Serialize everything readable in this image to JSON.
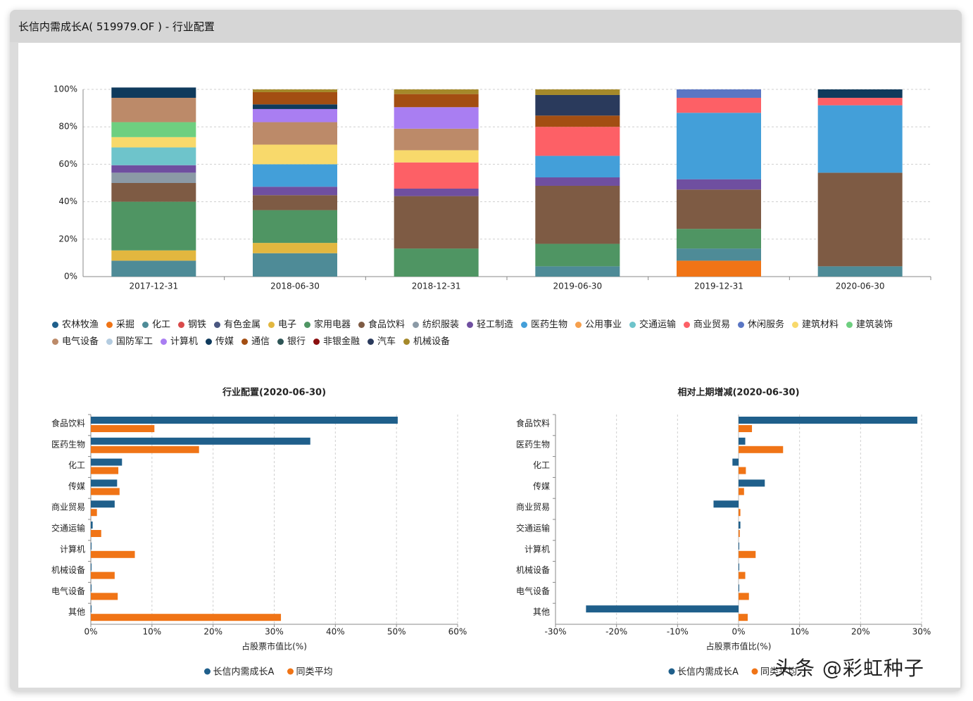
{
  "window": {
    "title": "长信内需成长A( 519979.OF ) - 行业配置"
  },
  "watermark": "头条 @彩虹种子",
  "colors": {
    "农林牧渔": "#1f5f8b",
    "采掘": "#f07416",
    "化工": "#4e8b97",
    "钢铁": "#d94a4a",
    "有色金属": "#4a5780",
    "电子": "#e2b73f",
    "家用电器": "#4f9563",
    "食品饮料": "#7e5b44",
    "纺织服装": "#8b9aa6",
    "轻工制造": "#6f4fa0",
    "医药生物": "#439fd9",
    "公用事业": "#f6a04d",
    "交通运输": "#6ec4cb",
    "商业贸易": "#fd6066",
    "休闲服务": "#5a76c4",
    "建筑材料": "#f8d96b",
    "建筑装饰": "#6ecf80",
    "电气设备": "#bc8a69",
    "国防军工": "#b4cce0",
    "计算机": "#a97ef2",
    "传媒": "#0f3a5c",
    "通信": "#a34e12",
    "银行": "#2e5556",
    "非银金融": "#8b0f0f",
    "汽车": "#2a3a5c",
    "机械设备": "#a5892a",
    "series_fund": "#1f5f8b",
    "series_avg": "#f07416"
  },
  "chart_data": [
    {
      "type": "bar",
      "stacked": true,
      "title": "",
      "categories": [
        "2017-12-31",
        "2018-06-30",
        "2018-12-31",
        "2019-06-30",
        "2019-12-31",
        "2020-06-30"
      ],
      "ylim": [
        0,
        100
      ],
      "yticks": [
        "0%",
        "20%",
        "40%",
        "60%",
        "80%",
        "100%"
      ],
      "grid": true,
      "legend_position": "bottom",
      "legend": [
        "农林牧渔",
        "采掘",
        "化工",
        "钢铁",
        "有色金属",
        "电子",
        "家用电器",
        "食品饮料",
        "纺织服装",
        "轻工制造",
        "医药生物",
        "公用事业",
        "交通运输",
        "商业贸易",
        "休闲服务",
        "建筑材料",
        "建筑装饰",
        "电气设备",
        "国防军工",
        "计算机",
        "传媒",
        "通信",
        "银行",
        "非银金融",
        "汽车",
        "机械设备"
      ],
      "stacks": [
        [
          [
            "化工",
            8.5
          ],
          [
            "电子",
            5.5
          ],
          [
            "家用电器",
            26
          ],
          [
            "食品饮料",
            10
          ],
          [
            "纺织服装",
            5.5
          ],
          [
            "轻工制造",
            4
          ],
          [
            "交通运输",
            9.5
          ],
          [
            "建筑材料",
            5.5
          ],
          [
            "建筑装饰",
            8
          ],
          [
            "电气设备",
            13
          ],
          [
            "传媒",
            5.5
          ]
        ],
        [
          [
            "化工",
            12.5
          ],
          [
            "电子",
            5.5
          ],
          [
            "家用电器",
            17.5
          ],
          [
            "食品饮料",
            8
          ],
          [
            "轻工制造",
            4.5
          ],
          [
            "医药生物",
            12
          ],
          [
            "建筑材料",
            10.5
          ],
          [
            "电气设备",
            12
          ],
          [
            "计算机",
            7
          ],
          [
            "传媒",
            2.5
          ],
          [
            "通信",
            6.5
          ],
          [
            "机械设备",
            1.5
          ]
        ],
        [
          [
            "家用电器",
            15
          ],
          [
            "食品饮料",
            28
          ],
          [
            "轻工制造",
            4
          ],
          [
            "商业贸易",
            14
          ],
          [
            "建筑材料",
            6.5
          ],
          [
            "电气设备",
            11.5
          ],
          [
            "计算机",
            11.5
          ],
          [
            "通信",
            7
          ],
          [
            "机械设备",
            2.5
          ]
        ],
        [
          [
            "化工",
            5.5
          ],
          [
            "家用电器",
            12
          ],
          [
            "食品饮料",
            31
          ],
          [
            "轻工制造",
            4.5
          ],
          [
            "医药生物",
            11.5
          ],
          [
            "商业贸易",
            15.5
          ],
          [
            "通信",
            6
          ],
          [
            "汽车",
            11
          ],
          [
            "机械设备",
            3
          ]
        ],
        [
          [
            "采掘",
            8.5
          ],
          [
            "化工",
            6.5
          ],
          [
            "家用电器",
            10.5
          ],
          [
            "食品饮料",
            21
          ],
          [
            "轻工制造",
            5.5
          ],
          [
            "医药生物",
            35.5
          ],
          [
            "商业贸易",
            8
          ],
          [
            "休闲服务",
            4.5
          ]
        ],
        [
          [
            "化工",
            5.5
          ],
          [
            "食品饮料",
            50
          ],
          [
            "医药生物",
            36
          ],
          [
            "商业贸易",
            4
          ],
          [
            "传媒",
            4.5
          ]
        ]
      ]
    },
    {
      "type": "bar",
      "orientation": "horizontal",
      "title": "行业配置(2020-06-30)",
      "xlabel": "占股票市值比(%)",
      "xlim": [
        0,
        60
      ],
      "xticks": [
        "0%",
        "10%",
        "20%",
        "30%",
        "40%",
        "50%",
        "60%"
      ],
      "categories": [
        "食品饮料",
        "医药生物",
        "化工",
        "传媒",
        "商业贸易",
        "交通运输",
        "计算机",
        "机械设备",
        "电气设备",
        "其他"
      ],
      "series": [
        {
          "name": "长信内需成长A",
          "values": [
            50.2,
            35.9,
            5.1,
            4.3,
            3.9,
            0.3,
            0.1,
            0.1,
            0.1,
            0.1
          ]
        },
        {
          "name": "同类平均",
          "values": [
            10.4,
            17.7,
            4.5,
            4.7,
            1.0,
            1.7,
            7.2,
            3.9,
            4.4,
            31.1
          ]
        }
      ],
      "legend_position": "bottom"
    },
    {
      "type": "bar",
      "orientation": "horizontal",
      "title": "相对上期增减(2020-06-30)",
      "xlabel": "占股票市值比(%)",
      "xlim": [
        -30,
        30
      ],
      "xticks": [
        "-30%",
        "-20%",
        "-10%",
        "0%",
        "10%",
        "20%",
        "30%"
      ],
      "categories": [
        "食品饮料",
        "医药生物",
        "化工",
        "传媒",
        "商业贸易",
        "交通运输",
        "计算机",
        "机械设备",
        "电气设备",
        "其他"
      ],
      "series": [
        {
          "name": "长信内需成长A",
          "values": [
            29.3,
            1.1,
            -1.0,
            4.3,
            -4.1,
            0.3,
            0.1,
            0.1,
            0.1,
            -25.0
          ]
        },
        {
          "name": "同类平均",
          "values": [
            2.2,
            7.3,
            1.2,
            0.9,
            0.3,
            0.2,
            2.8,
            1.1,
            1.7,
            1.5
          ]
        }
      ],
      "legend_position": "bottom"
    }
  ]
}
